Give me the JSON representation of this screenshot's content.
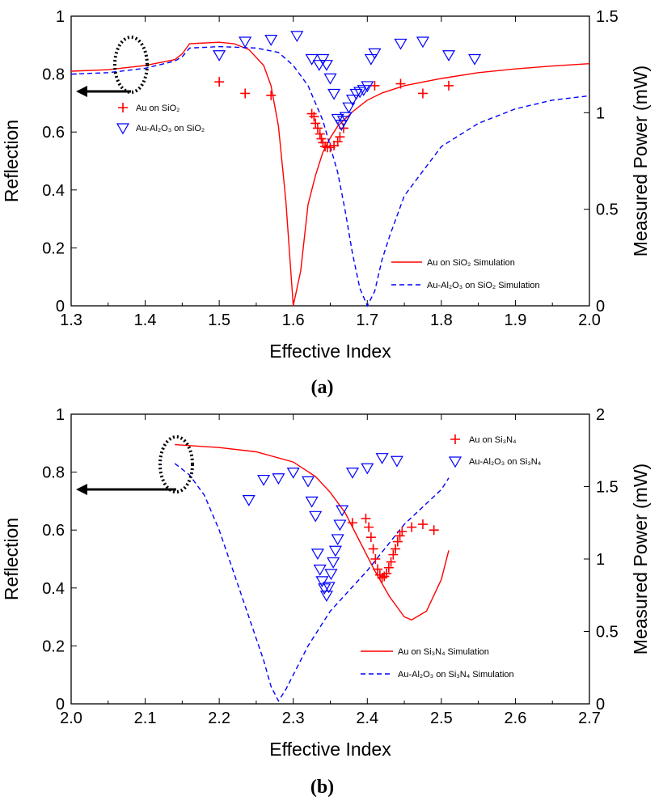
{
  "figure": {
    "panel_a_label": "(a)",
    "panel_b_label": "(b)"
  },
  "chart_data": [
    {
      "type": "line",
      "panel": "a",
      "label": "(a)",
      "xlabel": "Effective Index",
      "ylabel": "Reflection",
      "y2label": "Measured  Power  (mW)",
      "xlim": [
        1.3,
        2.0
      ],
      "ylim": [
        0,
        1
      ],
      "y2lim": [
        0,
        1.5
      ],
      "xticks": [
        1.3,
        1.4,
        1.5,
        1.6,
        1.7,
        1.8,
        1.9,
        2.0
      ],
      "xtick_labels": [
        "1.3",
        "1.4",
        "1.5",
        "1.6",
        "1.7",
        "1.8",
        "1.9",
        "2.0"
      ],
      "yticks": [
        0,
        0.2,
        0.4,
        0.6,
        0.8,
        1
      ],
      "ytick_labels": [
        "0",
        "0.2",
        "0.4",
        "0.6",
        "0.8",
        "1"
      ],
      "y2ticks": [
        0,
        0.5,
        1,
        1.5
      ],
      "y2tick_labels": [
        "0",
        "0.5",
        "1",
        "1.5"
      ],
      "series": [
        {
          "name": "Au on SiO2 Simulation",
          "legend_text": "Au on SiO₂ Simulation",
          "kind": "line",
          "axis": "left",
          "color": "#ff0000",
          "dash": "none",
          "x": [
            1.3,
            1.35,
            1.4,
            1.44,
            1.45,
            1.46,
            1.5,
            1.52,
            1.54,
            1.56,
            1.57,
            1.58,
            1.59,
            1.6,
            1.61,
            1.62,
            1.63,
            1.64,
            1.65,
            1.66,
            1.68,
            1.7,
            1.72,
            1.75,
            1.8,
            1.85,
            1.9,
            1.95,
            2.0
          ],
          "y": [
            0.81,
            0.815,
            0.83,
            0.85,
            0.87,
            0.905,
            0.91,
            0.905,
            0.885,
            0.83,
            0.76,
            0.62,
            0.36,
            0.0,
            0.12,
            0.35,
            0.45,
            0.53,
            0.58,
            0.62,
            0.67,
            0.71,
            0.735,
            0.76,
            0.785,
            0.805,
            0.818,
            0.828,
            0.836
          ]
        },
        {
          "name": "Au-Al2O3 on SiO2 Simulation",
          "legend_text": "Au-Al₂O₃ on SiO₂ Simulation",
          "kind": "line",
          "axis": "left",
          "color": "#0000ff",
          "dash": "6,4",
          "x": [
            1.3,
            1.35,
            1.4,
            1.44,
            1.45,
            1.46,
            1.5,
            1.55,
            1.58,
            1.6,
            1.62,
            1.64,
            1.66,
            1.67,
            1.68,
            1.69,
            1.7,
            1.71,
            1.72,
            1.73,
            1.75,
            1.8,
            1.85,
            1.9,
            1.95,
            2.0
          ],
          "y": [
            0.8,
            0.805,
            0.82,
            0.845,
            0.86,
            0.89,
            0.895,
            0.89,
            0.875,
            0.83,
            0.76,
            0.64,
            0.46,
            0.33,
            0.18,
            0.06,
            0.0,
            0.05,
            0.16,
            0.24,
            0.38,
            0.55,
            0.63,
            0.68,
            0.71,
            0.725
          ]
        },
        {
          "name": "Au on SiO2",
          "legend_text": "Au on SiO₂",
          "kind": "scatter",
          "marker": "plus",
          "axis": "right",
          "color": "#ff0000",
          "x": [
            1.5,
            1.535,
            1.57,
            1.625,
            1.628,
            1.63,
            1.633,
            1.636,
            1.638,
            1.64,
            1.643,
            1.646,
            1.65,
            1.655,
            1.66,
            1.663,
            1.668,
            1.71,
            1.745,
            1.775,
            1.81
          ],
          "y": [
            1.16,
            1.1,
            1.09,
            0.995,
            0.98,
            0.945,
            0.92,
            0.89,
            0.865,
            0.845,
            0.825,
            0.82,
            0.82,
            0.83,
            0.85,
            0.875,
            0.92,
            1.14,
            1.15,
            1.1,
            1.14
          ]
        },
        {
          "name": "Au-Al2O3 on SiO2",
          "legend_text": "Au-Al₂O₃ on SiO₂",
          "kind": "scatter",
          "marker": "triangle-down",
          "axis": "right",
          "color": "#0000ff",
          "x": [
            1.5,
            1.535,
            1.57,
            1.605,
            1.625,
            1.635,
            1.64,
            1.645,
            1.65,
            1.655,
            1.66,
            1.665,
            1.668,
            1.671,
            1.675,
            1.68,
            1.685,
            1.69,
            1.695,
            1.7,
            1.705,
            1.71,
            1.745,
            1.775,
            1.81,
            1.845
          ],
          "y": [
            1.3,
            1.37,
            1.38,
            1.4,
            1.28,
            1.25,
            1.28,
            1.25,
            1.18,
            1.1,
            0.97,
            0.94,
            0.96,
            0.98,
            1.03,
            1.07,
            1.1,
            1.11,
            1.12,
            1.14,
            1.28,
            1.31,
            1.36,
            1.37,
            1.3,
            1.28
          ]
        }
      ],
      "legend": {
        "placement": "top-left and bottom-right"
      },
      "annotations": [
        "ellipse with arrow pointing to the left (Reflection) axis"
      ]
    },
    {
      "type": "line",
      "panel": "b",
      "label": "(b)",
      "xlabel": "Effective Index",
      "ylabel": "Reflection",
      "y2label": "Measured  Power  (mW)",
      "xlim": [
        2.0,
        2.7
      ],
      "ylim": [
        0,
        1
      ],
      "y2lim": [
        0,
        2
      ],
      "xticks": [
        2.0,
        2.1,
        2.2,
        2.3,
        2.4,
        2.5,
        2.6,
        2.7
      ],
      "xtick_labels": [
        "2.0",
        "2.1",
        "2.2",
        "2.3",
        "2.4",
        "2.5",
        "2.6",
        "2.7"
      ],
      "yticks": [
        0,
        0.2,
        0.4,
        0.6,
        0.8,
        1
      ],
      "ytick_labels": [
        "0",
        "0.2",
        "0.4",
        "0.6",
        "0.8",
        "1"
      ],
      "y2ticks": [
        0,
        0.5,
        1,
        1.5,
        2
      ],
      "y2tick_labels": [
        "0",
        "0.5",
        "1",
        "1.5",
        "2"
      ],
      "series": [
        {
          "name": "Au on Si3N4 Simulation",
          "legend_text": "Au on Si₃N₄ Simulation",
          "kind": "line",
          "axis": "left",
          "color": "#ff0000",
          "dash": "none",
          "x": [
            2.14,
            2.2,
            2.25,
            2.3,
            2.33,
            2.35,
            2.37,
            2.39,
            2.41,
            2.43,
            2.45,
            2.46,
            2.48,
            2.5,
            2.51
          ],
          "y": [
            0.895,
            0.885,
            0.87,
            0.835,
            0.785,
            0.73,
            0.66,
            0.56,
            0.46,
            0.37,
            0.3,
            0.29,
            0.32,
            0.43,
            0.53
          ]
        },
        {
          "name": "Au-Al2O3 on Si3N4 Simulation",
          "legend_text": "Au-Al₂O₃ on Si₃N₄ Simulation",
          "kind": "line",
          "axis": "left",
          "color": "#0000ff",
          "dash": "6,4",
          "x": [
            2.14,
            2.16,
            2.18,
            2.2,
            2.22,
            2.24,
            2.26,
            2.27,
            2.28,
            2.29,
            2.3,
            2.32,
            2.35,
            2.4,
            2.45,
            2.5,
            2.51
          ],
          "y": [
            0.83,
            0.79,
            0.72,
            0.6,
            0.45,
            0.3,
            0.15,
            0.06,
            0.01,
            0.05,
            0.1,
            0.2,
            0.32,
            0.46,
            0.62,
            0.74,
            0.78
          ]
        },
        {
          "name": "Au on Si3N4",
          "legend_text": "Au on Si₃N₄",
          "kind": "scatter",
          "marker": "plus",
          "axis": "right",
          "color": "#ff0000",
          "x": [
            2.38,
            2.398,
            2.402,
            2.405,
            2.408,
            2.411,
            2.414,
            2.417,
            2.42,
            2.423,
            2.426,
            2.429,
            2.432,
            2.435,
            2.438,
            2.441,
            2.444,
            2.447,
            2.46,
            2.475,
            2.49
          ],
          "y": [
            1.25,
            1.28,
            1.22,
            1.15,
            1.07,
            1.0,
            0.93,
            0.89,
            0.87,
            0.88,
            0.9,
            0.94,
            0.98,
            1.03,
            1.07,
            1.12,
            1.16,
            1.19,
            1.22,
            1.24,
            1.2
          ],
          "legend_placement": "top-right"
        },
        {
          "name": "Au-Al2O3 on Si3N4",
          "legend_text": "Au-Al₂O₃ on Si₃N₄",
          "kind": "scatter",
          "marker": "triangle-down",
          "axis": "right",
          "color": "#0000ff",
          "x": [
            2.24,
            2.26,
            2.28,
            2.3,
            2.32,
            2.325,
            2.33,
            2.333,
            2.336,
            2.339,
            2.342,
            2.345,
            2.348,
            2.351,
            2.354,
            2.357,
            2.36,
            2.363,
            2.366,
            2.38,
            2.4,
            2.42,
            2.44
          ],
          "y": [
            1.41,
            1.55,
            1.56,
            1.6,
            1.54,
            1.4,
            1.3,
            1.04,
            0.93,
            0.85,
            0.8,
            0.75,
            0.81,
            0.9,
            0.98,
            1.06,
            1.14,
            1.24,
            1.34,
            1.6,
            1.63,
            1.7,
            1.68
          ]
        }
      ],
      "legend": {
        "placement": "top-right and bottom-right"
      },
      "annotations": [
        "ellipse with arrow pointing to the left (Reflection) axis"
      ]
    }
  ]
}
